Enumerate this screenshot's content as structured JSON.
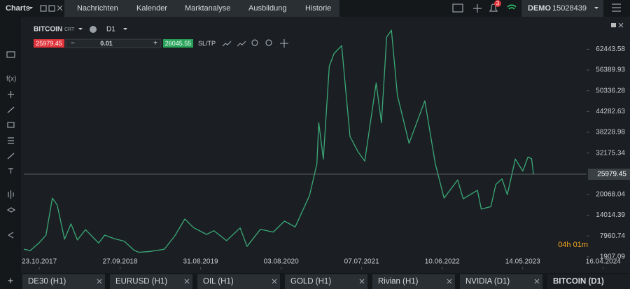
{
  "top_bar": {
    "menu": "Charts",
    "tabs": [
      "Nachrichten",
      "Kalender",
      "Marktanalyse",
      "Ausbildung",
      "Historie"
    ],
    "badge": "3",
    "account_type": "DEMO",
    "account_id": "15028439"
  },
  "toolbar": {
    "symbol": "BITCOIN",
    "symbol_tag": "CRT",
    "timeframe": "D1",
    "sell_price": "25979.45",
    "volume": "0.01",
    "buy_price": "26045.55",
    "sltp": "SL/TP"
  },
  "chart_data": {
    "type": "line",
    "color": "#3aa876",
    "x": [
      "2017-08-20",
      "2017-09-15",
      "2017-10-23",
      "2017-11-20",
      "2017-12-17",
      "2018-01-06",
      "2018-02-06",
      "2018-03-05",
      "2018-04-01",
      "2018-05-05",
      "2018-06-29",
      "2018-07-25",
      "2018-09-01",
      "2018-10-15",
      "2018-11-25",
      "2018-12-15",
      "2019-02-01",
      "2019-04-01",
      "2019-05-15",
      "2019-06-26",
      "2019-08-01",
      "2019-09-25",
      "2019-10-26",
      "2019-12-18",
      "2020-02-13",
      "2020-03-13",
      "2020-05-08",
      "2020-07-01",
      "2020-08-17",
      "2020-10-01",
      "2020-11-30",
      "2020-12-31",
      "2021-01-08",
      "2021-01-27",
      "2021-02-21",
      "2021-03-13",
      "2021-04-14",
      "2021-05-19",
      "2021-06-22",
      "2021-07-20",
      "2021-09-06",
      "2021-09-28",
      "2021-10-20",
      "2021-11-09",
      "2021-12-04",
      "2022-01-22",
      "2022-03-29",
      "2022-05-12",
      "2022-06-18",
      "2022-08-14",
      "2022-09-06",
      "2022-11-05",
      "2022-11-21",
      "2022-12-31",
      "2023-01-21",
      "2023-02-16",
      "2023-03-10",
      "2023-04-13",
      "2023-05-14",
      "2023-06-05",
      "2023-06-20",
      "2023-06-28"
    ],
    "values": [
      4100,
      3700,
      6000,
      8200,
      19000,
      17000,
      7000,
      11500,
      6800,
      9800,
      5900,
      8200,
      7200,
      6400,
      3800,
      3200,
      3450,
      4100,
      8000,
      12900,
      10400,
      8400,
      9500,
      6600,
      10300,
      4900,
      9900,
      9100,
      12300,
      10600,
      19700,
      29000,
      41000,
      30400,
      57500,
      61200,
      63500,
      37000,
      32500,
      29800,
      52600,
      41000,
      66000,
      68000,
      49000,
      35000,
      47400,
      29000,
      19000,
      24300,
      18800,
      21300,
      15800,
      16500,
      23000,
      24600,
      20000,
      30400,
      26900,
      31000,
      30500,
      25979.45
    ],
    "current_price": 25979.45,
    "countdown": "04h 01m",
    "xlim": [
      "2017-08-19",
      "2024-02-06"
    ],
    "xticks": [
      {
        "value": "2017-10-23",
        "label": "23.10.2017"
      },
      {
        "value": "2018-09-27",
        "label": "27.09.2018"
      },
      {
        "value": "2019-08-31",
        "label": "31.08.2019"
      },
      {
        "value": "2020-08-03",
        "label": "03.08.2020"
      },
      {
        "value": "2021-07-07",
        "label": "07.07.2021"
      },
      {
        "value": "2022-06-10",
        "label": "10.06.2022"
      },
      {
        "value": "2023-05-14",
        "label": "14.05.2023"
      },
      {
        "value": "2024-04-16",
        "label": "16.04.2024"
      }
    ],
    "ylim": [
      -1800,
      71100
    ],
    "yticks": [
      62443.58,
      56389.93,
      50336.28,
      44282.63,
      38228.98,
      32175.34,
      20068.04,
      14014.39,
      7960.74,
      1907.09
    ]
  },
  "bottom_tabs": [
    "DE30 (H1)",
    "EURUSD (H1)",
    "OIL (H1)",
    "GOLD (H1)",
    "Rivian (H1)",
    "NVIDIA (D1)",
    "BITCOIN (D1)"
  ]
}
